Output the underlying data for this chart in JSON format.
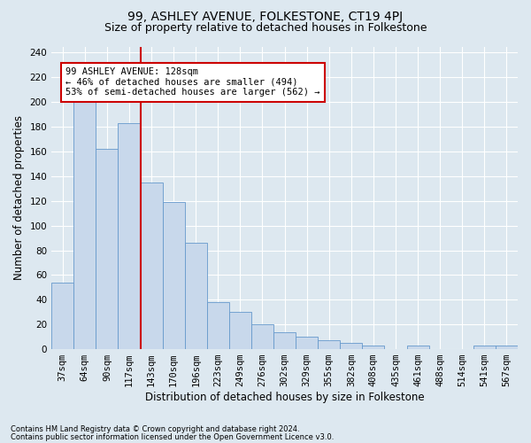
{
  "title": "99, ASHLEY AVENUE, FOLKESTONE, CT19 4PJ",
  "subtitle": "Size of property relative to detached houses in Folkestone",
  "xlabel": "Distribution of detached houses by size in Folkestone",
  "ylabel": "Number of detached properties",
  "footnote1": "Contains HM Land Registry data © Crown copyright and database right 2024.",
  "footnote2": "Contains public sector information licensed under the Open Government Licence v3.0.",
  "categories": [
    "37sqm",
    "64sqm",
    "90sqm",
    "117sqm",
    "143sqm",
    "170sqm",
    "196sqm",
    "223sqm",
    "249sqm",
    "276sqm",
    "302sqm",
    "329sqm",
    "355sqm",
    "382sqm",
    "408sqm",
    "435sqm",
    "461sqm",
    "488sqm",
    "514sqm",
    "541sqm",
    "567sqm"
  ],
  "values": [
    54,
    200,
    162,
    183,
    135,
    119,
    86,
    38,
    30,
    20,
    14,
    10,
    7,
    5,
    3,
    0,
    3,
    0,
    0,
    3,
    3
  ],
  "bar_color": "#c8d8eb",
  "bar_edge_color": "#6699cc",
  "highlight_line_color": "#cc0000",
  "annotation_text": "99 ASHLEY AVENUE: 128sqm\n← 46% of detached houses are smaller (494)\n53% of semi-detached houses are larger (562) →",
  "annotation_box_color": "#ffffff",
  "annotation_box_edge_color": "#cc0000",
  "ylim": [
    0,
    245
  ],
  "yticks": [
    0,
    20,
    40,
    60,
    80,
    100,
    120,
    140,
    160,
    180,
    200,
    220,
    240
  ],
  "fig_background_color": "#dde8f0",
  "plot_background_color": "#dde8f0",
  "grid_color": "#ffffff",
  "title_fontsize": 10,
  "subtitle_fontsize": 9,
  "xlabel_fontsize": 8.5,
  "ylabel_fontsize": 8.5,
  "tick_fontsize": 7.5,
  "annot_fontsize": 7.5
}
